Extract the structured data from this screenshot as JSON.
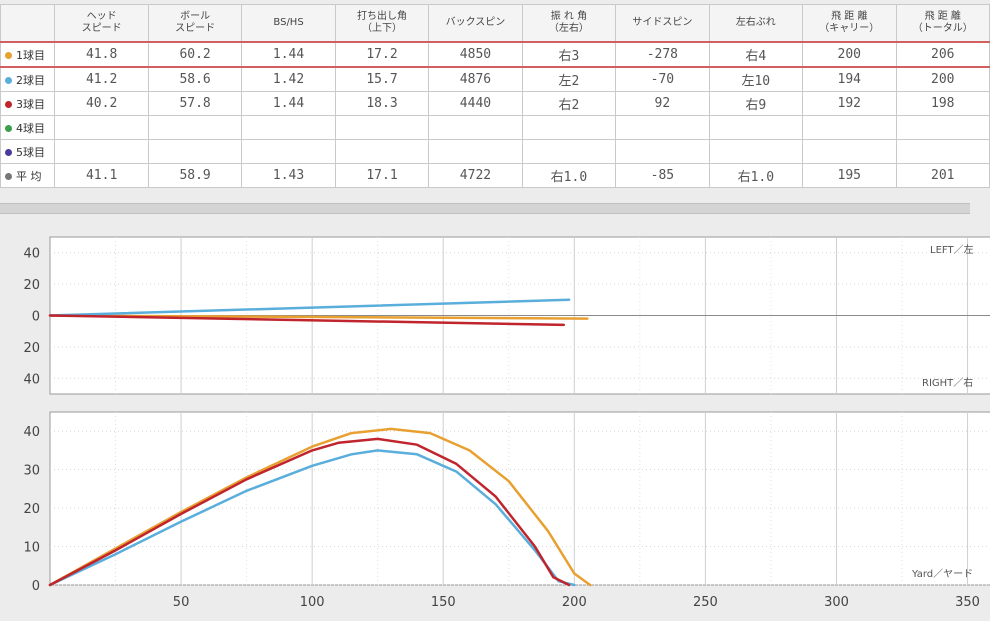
{
  "table": {
    "headers": [
      {
        "lines": [
          "",
          ""
        ]
      },
      {
        "lines": [
          "ヘッド",
          "スピード"
        ]
      },
      {
        "lines": [
          "ボール",
          "スピード"
        ]
      },
      {
        "lines": [
          "BS/HS",
          ""
        ]
      },
      {
        "lines": [
          "打ち出し角",
          "（上下）"
        ]
      },
      {
        "lines": [
          "バックスピン",
          ""
        ]
      },
      {
        "lines": [
          "振 れ 角",
          "（左右）"
        ]
      },
      {
        "lines": [
          "サイドスピン",
          ""
        ]
      },
      {
        "lines": [
          "左右ぶれ",
          ""
        ]
      },
      {
        "lines": [
          "飛 距 離",
          "（キャリー）"
        ]
      },
      {
        "lines": [
          "飛 距 離",
          "（トータル）"
        ]
      }
    ],
    "rows": [
      {
        "label": "1球目",
        "color": "#e8a030",
        "values": [
          "41.8",
          "60.2",
          "1.44",
          "17.2",
          "4850",
          "右3",
          "-278",
          "右4",
          "200",
          "206"
        ]
      },
      {
        "label": "2球目",
        "color": "#5aaedc",
        "values": [
          "41.2",
          "58.6",
          "1.42",
          "15.7",
          "4876",
          "左2",
          "-70",
          "左10",
          "194",
          "200"
        ]
      },
      {
        "label": "3球目",
        "color": "#c0242c",
        "values": [
          "40.2",
          "57.8",
          "1.44",
          "18.3",
          "4440",
          "右2",
          "92",
          "右9",
          "192",
          "198"
        ]
      },
      {
        "label": "4球目",
        "color": "#3aa04a",
        "values": [
          "",
          "",
          "",
          "",
          "",
          "",
          "",
          "",
          "",
          ""
        ]
      },
      {
        "label": "5球目",
        "color": "#4a3a9c",
        "values": [
          "",
          "",
          "",
          "",
          "",
          "",
          "",
          "",
          "",
          ""
        ]
      },
      {
        "label": "平 均",
        "color": "#777777",
        "values": [
          "41.1",
          "58.9",
          "1.43",
          "17.1",
          "4722",
          "右1.0",
          "-85",
          "右1.0",
          "195",
          "201"
        ]
      }
    ]
  },
  "chart_data": [
    {
      "type": "line",
      "title": "",
      "y_ticks": [
        "40",
        "20",
        "0",
        "20",
        "40"
      ],
      "y_tick_values": [
        40,
        20,
        0,
        -20,
        -40
      ],
      "ylim": [
        -50,
        50
      ],
      "xlim": [
        0,
        370
      ],
      "grid": true,
      "corner_labels": {
        "top_right": "LEFT／左",
        "bottom_right": "RIGHT／右"
      },
      "series": [
        {
          "color": "#e8a030",
          "x": [
            0,
            205
          ],
          "y": [
            0,
            -2
          ]
        },
        {
          "color": "#5aaedc",
          "x": [
            0,
            198
          ],
          "y": [
            0,
            10
          ]
        },
        {
          "color": "#c0242c",
          "x": [
            0,
            196
          ],
          "y": [
            0,
            -6
          ]
        }
      ]
    },
    {
      "type": "line",
      "title": "",
      "y_ticks": [
        "40",
        "30",
        "20",
        "10",
        "0"
      ],
      "y_tick_values": [
        40,
        30,
        20,
        10,
        0
      ],
      "x_ticks": [
        "50",
        "100",
        "150",
        "200",
        "250",
        "300",
        "350"
      ],
      "x_tick_values": [
        50,
        100,
        150,
        200,
        250,
        300,
        350
      ],
      "xlim": [
        0,
        370
      ],
      "ylim": [
        0,
        45
      ],
      "grid": true,
      "corner_labels": {
        "bottom_right": "Yard／ヤード"
      },
      "series": [
        {
          "color": "#e8a030",
          "x": [
            0,
            25,
            50,
            75,
            100,
            115,
            130,
            145,
            160,
            175,
            190,
            200,
            206
          ],
          "y": [
            0,
            9.5,
            19,
            28,
            36,
            39.5,
            40.6,
            39.5,
            35,
            27,
            14,
            3,
            0
          ]
        },
        {
          "color": "#5aaedc",
          "x": [
            0,
            25,
            50,
            75,
            100,
            115,
            125,
            140,
            155,
            170,
            185,
            194,
            200
          ],
          "y": [
            0,
            8,
            16.5,
            24.5,
            31,
            34,
            35,
            34,
            29.5,
            21,
            9,
            1,
            0
          ]
        },
        {
          "color": "#c0242c",
          "x": [
            0,
            25,
            50,
            75,
            100,
            110,
            125,
            140,
            155,
            170,
            185,
            192,
            198
          ],
          "y": [
            0,
            9,
            18.5,
            27.5,
            35,
            37,
            38,
            36.5,
            31.5,
            23,
            10,
            2,
            0
          ]
        }
      ]
    }
  ]
}
